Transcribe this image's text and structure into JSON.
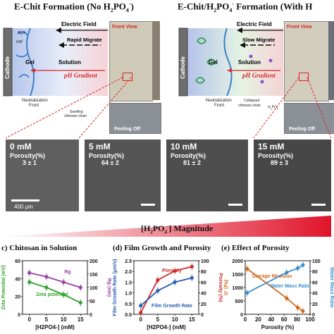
{
  "panel_a": {
    "title": "E-Chit  Formation (No H",
    "title_sub": "2",
    "title_mid": "PO",
    "title_sub2": "4",
    "title_sup": "-",
    "title_end": ")",
    "cathode": "Cathode",
    "electric_field": "Electric Field",
    "migrate": "Rapid Migrate",
    "gel": "Gel",
    "solution": "Solution",
    "gradient": "pH Gradient",
    "neutralization": "Neutralization",
    "front": "Front",
    "swelling": "Swelling",
    "chain": "chitosan chain",
    "h2o": "H",
    "oh": "OH",
    "front_view": "Front View",
    "peeling": "Peeling Off"
  },
  "panel_b": {
    "title": "E-Chit/H",
    "title_sub": "2",
    "title_mid": "PO",
    "title_sub2": "4",
    "title_sup": "-",
    "title_end": " Formation (With H",
    "cathode": "Cathode",
    "electric_field": "Electric Field",
    "migrate": "Slow Migrate",
    "gel": "Gel",
    "solution": "Solution",
    "gradient": "pH Gradient",
    "neutralization": "Neutralization",
    "front": "Front",
    "collapsed": "Collapsed",
    "chain": "chitosan chain",
    "h2po4": "H",
    "front_view": "Front View",
    "peeling": "Peeling Off"
  },
  "sem": [
    {
      "conc": "0 mM",
      "porosity_label": "Porosity(%)",
      "porosity": "3 ± 1"
    },
    {
      "conc": "5 mM",
      "porosity_label": "Porosity(%)",
      "porosity": "64 ± 2"
    },
    {
      "conc": "10  mM",
      "porosity_label": "Porosity(%)",
      "porosity": "81 ± 2"
    },
    {
      "conc": "15 mM",
      "porosity_label": "Porosity(%)",
      "porosity": "89 ± 3"
    }
  ],
  "scale_bar": "400 μm",
  "magnitude": {
    "pre": "[H",
    "sub": "2",
    "mid": "PO",
    "sub2": "4",
    "sup": "-",
    "post": "] Magnitude"
  },
  "charts_header": {
    "c": "c)  Chitosan in Solution",
    "d": "(d)   Film Growth and Porosity",
    "e": "(e)   Effect of Porosity"
  },
  "chart_data": [
    {
      "type": "line",
      "title": "Chitosan in Solution",
      "xlabel": "[H2PO4-] (mM)",
      "ylabel": "Zeta Potential (mV)",
      "y2label": "Rg (nm)",
      "x": [
        0,
        5,
        10,
        15
      ],
      "xticks": [
        "0",
        "5",
        "10",
        "15"
      ],
      "ylim": [
        0,
        60
      ],
      "y2lim": [
        0,
        200
      ],
      "series": [
        {
          "name": "Rg",
          "axis": "right",
          "values": [
            155,
            140,
            120,
            100
          ],
          "color": "#9b3fa8"
        },
        {
          "name": "Zeta potential",
          "axis": "left",
          "values": [
            36,
            30,
            22,
            13
          ],
          "color": "#2fa52f"
        }
      ]
    },
    {
      "type": "line",
      "title": "Film Growth and Porosity",
      "xlabel": "[H2PO4-] (mM)",
      "ylabel": "Film Growth Rate (μm/s)",
      "y2label": "Porosity (%)",
      "x": [
        0,
        5,
        10,
        15
      ],
      "xticks": [
        "0",
        "5",
        "10",
        "15"
      ],
      "ylim": [
        0.0,
        2.5
      ],
      "y2lim": [
        0,
        100
      ],
      "series": [
        {
          "name": "Porosity",
          "axis": "right",
          "values": [
            3,
            64,
            81,
            89
          ],
          "color": "#d12a2a"
        },
        {
          "name": "Film Growth Rate",
          "axis": "left",
          "values": [
            0.4,
            1.1,
            1.5,
            1.7
          ],
          "color": "#2a5fb0"
        }
      ]
    },
    {
      "type": "line",
      "title": "Effect of Porosity",
      "xlabel": "Porosity (%)",
      "ylabel": "G' (Pa)",
      "y2label": "Water Mass Ratio",
      "x": [
        3,
        64,
        81,
        89
      ],
      "xticks": [
        "0",
        "20",
        "40",
        "60",
        "80",
        "100"
      ],
      "ylim": [
        0,
        2000
      ],
      "y2lim": [
        0,
        100
      ],
      "series": [
        {
          "name": "Storage Modulus",
          "axis": "left",
          "values": [
            1700,
            600,
            250,
            120
          ],
          "color": "#d46a1a"
        },
        {
          "name": "Water Mass Ratio",
          "axis": "right",
          "values": [
            40,
            78,
            86,
            92
          ],
          "color": "#3b8fd0"
        }
      ]
    }
  ]
}
